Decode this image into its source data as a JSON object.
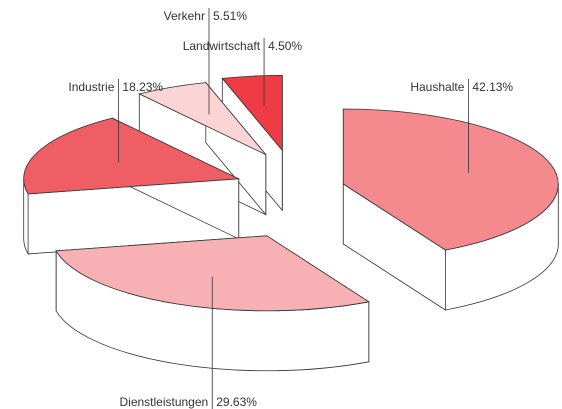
{
  "chart_data": {
    "type": "pie",
    "categories": [
      "Haushalte",
      "Dienstleistungen",
      "Industrie",
      "Verkehr",
      "Landwirtschaft"
    ],
    "values": [
      42.13,
      29.63,
      18.23,
      5.51,
      4.5
    ],
    "value_labels": [
      "42.13%",
      "29.63%",
      "18.23%",
      "5.51%",
      "4.50%"
    ],
    "colors": [
      "#f48a8e",
      "#f7b1b4",
      "#ef5d65",
      "#fbd5d6",
      "#ee3b44"
    ]
  }
}
